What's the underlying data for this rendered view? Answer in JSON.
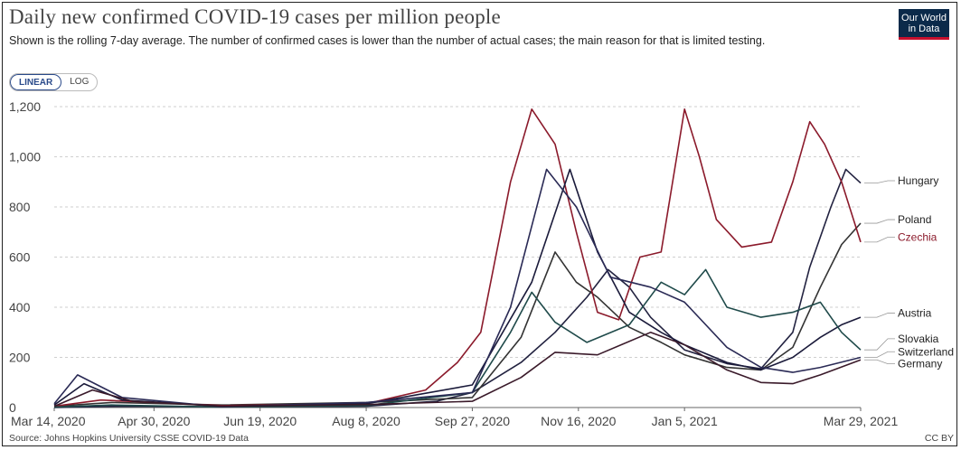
{
  "header": {
    "title": "Daily new confirmed COVID-19 cases per million people",
    "subtitle": "Shown is the rolling 7-day average. The number of confirmed cases is lower than the number of actual cases; the main reason for that is limited testing.",
    "logo_line1": "Our World",
    "logo_line2": "in Data"
  },
  "controls": {
    "linear_label": "LINEAR",
    "log_label": "LOG",
    "selected": "LINEAR"
  },
  "footer": {
    "source": "Source: Johns Hopkins University CSSE COVID-19 Data",
    "license": "CC BY"
  },
  "chart_data": {
    "type": "line",
    "title": "Daily new confirmed COVID-19 cases per million people",
    "ylim": [
      0,
      1200
    ],
    "yticks": [
      0,
      200,
      400,
      600,
      800,
      1000,
      1200
    ],
    "ytick_labels": [
      "0",
      "200",
      "400",
      "600",
      "800",
      "1,000",
      "1,200"
    ],
    "xlim": [
      "2020-03-14",
      "2021-03-29"
    ],
    "xticks": [
      "2020-03-14",
      "2020-04-30",
      "2020-06-19",
      "2020-08-08",
      "2020-09-27",
      "2020-11-16",
      "2021-01-05",
      "2021-03-29"
    ],
    "xtick_labels": [
      "Mar 14, 2020",
      "Apr 30, 2020",
      "Jun 19, 2020",
      "Aug 8, 2020",
      "Sep 27, 2020",
      "Nov 16, 2020",
      "Jan 5, 2021",
      "Mar 29, 2021"
    ],
    "grid": true,
    "legend": "right-end-labels",
    "series": [
      {
        "name": "Hungary",
        "color": "#222240",
        "points": [
          [
            "2020-03-14",
            0
          ],
          [
            "2020-04-15",
            5
          ],
          [
            "2020-06-01",
            3
          ],
          [
            "2020-08-08",
            5
          ],
          [
            "2020-09-10",
            25
          ],
          [
            "2020-09-27",
            60
          ],
          [
            "2020-10-20",
            180
          ],
          [
            "2020-11-05",
            300
          ],
          [
            "2020-11-20",
            440
          ],
          [
            "2020-11-30",
            550
          ],
          [
            "2020-12-10",
            480
          ],
          [
            "2020-12-20",
            360
          ],
          [
            "2021-01-05",
            230
          ],
          [
            "2021-01-25",
            175
          ],
          [
            "2021-02-10",
            155
          ],
          [
            "2021-02-25",
            300
          ],
          [
            "2021-03-05",
            560
          ],
          [
            "2021-03-15",
            800
          ],
          [
            "2021-03-22",
            950
          ],
          [
            "2021-03-29",
            895
          ]
        ]
      },
      {
        "name": "Poland",
        "color": "#333333",
        "points": [
          [
            "2020-03-14",
            5
          ],
          [
            "2020-04-10",
            20
          ],
          [
            "2020-06-01",
            10
          ],
          [
            "2020-08-08",
            20
          ],
          [
            "2020-09-27",
            40
          ],
          [
            "2020-10-20",
            280
          ],
          [
            "2020-11-05",
            620
          ],
          [
            "2020-11-15",
            500
          ],
          [
            "2020-11-25",
            440
          ],
          [
            "2020-12-10",
            320
          ],
          [
            "2020-12-25",
            260
          ],
          [
            "2021-01-05",
            210
          ],
          [
            "2021-01-25",
            160
          ],
          [
            "2021-02-10",
            150
          ],
          [
            "2021-02-25",
            240
          ],
          [
            "2021-03-10",
            480
          ],
          [
            "2021-03-20",
            650
          ],
          [
            "2021-03-29",
            735
          ]
        ]
      },
      {
        "name": "Czechia",
        "color": "#8b1a2b",
        "points": [
          [
            "2020-03-14",
            5
          ],
          [
            "2020-04-05",
            30
          ],
          [
            "2020-06-01",
            8
          ],
          [
            "2020-08-08",
            15
          ],
          [
            "2020-09-05",
            70
          ],
          [
            "2020-09-20",
            180
          ],
          [
            "2020-10-01",
            300
          ],
          [
            "2020-10-15",
            900
          ],
          [
            "2020-10-25",
            1190
          ],
          [
            "2020-11-05",
            1050
          ],
          [
            "2020-11-15",
            700
          ],
          [
            "2020-11-25",
            380
          ],
          [
            "2020-12-05",
            350
          ],
          [
            "2020-12-15",
            600
          ],
          [
            "2020-12-25",
            620
          ],
          [
            "2021-01-05",
            1190
          ],
          [
            "2021-01-12",
            1000
          ],
          [
            "2021-01-20",
            750
          ],
          [
            "2021-02-01",
            640
          ],
          [
            "2021-02-15",
            660
          ],
          [
            "2021-02-25",
            900
          ],
          [
            "2021-03-05",
            1140
          ],
          [
            "2021-03-12",
            1050
          ],
          [
            "2021-03-20",
            900
          ],
          [
            "2021-03-29",
            660
          ]
        ]
      },
      {
        "name": "Austria",
        "color": "#1a1a3a",
        "points": [
          [
            "2020-03-14",
            10
          ],
          [
            "2020-03-28",
            95
          ],
          [
            "2020-04-15",
            30
          ],
          [
            "2020-06-01",
            5
          ],
          [
            "2020-08-08",
            15
          ],
          [
            "2020-09-27",
            90
          ],
          [
            "2020-10-25",
            500
          ],
          [
            "2020-11-12",
            950
          ],
          [
            "2020-11-25",
            620
          ],
          [
            "2020-12-10",
            380
          ],
          [
            "2020-12-25",
            300
          ],
          [
            "2021-01-05",
            250
          ],
          [
            "2021-01-25",
            180
          ],
          [
            "2021-02-10",
            150
          ],
          [
            "2021-02-25",
            200
          ],
          [
            "2021-03-10",
            280
          ],
          [
            "2021-03-20",
            330
          ],
          [
            "2021-03-29",
            360
          ]
        ]
      },
      {
        "name": "Slovakia",
        "color": "#1f4a4a",
        "points": [
          [
            "2020-03-14",
            2
          ],
          [
            "2020-04-10",
            10
          ],
          [
            "2020-06-01",
            2
          ],
          [
            "2020-08-08",
            8
          ],
          [
            "2020-09-27",
            60
          ],
          [
            "2020-10-15",
            300
          ],
          [
            "2020-10-25",
            460
          ],
          [
            "2020-11-05",
            340
          ],
          [
            "2020-11-20",
            260
          ],
          [
            "2020-12-10",
            330
          ],
          [
            "2020-12-25",
            500
          ],
          [
            "2021-01-05",
            450
          ],
          [
            "2021-01-15",
            550
          ],
          [
            "2021-01-25",
            400
          ],
          [
            "2021-02-10",
            360
          ],
          [
            "2021-02-25",
            380
          ],
          [
            "2021-03-10",
            420
          ],
          [
            "2021-03-20",
            300
          ],
          [
            "2021-03-29",
            230
          ]
        ]
      },
      {
        "name": "Switzerland",
        "color": "#2a2a55",
        "points": [
          [
            "2020-03-14",
            15
          ],
          [
            "2020-03-25",
            130
          ],
          [
            "2020-04-15",
            40
          ],
          [
            "2020-06-01",
            3
          ],
          [
            "2020-08-08",
            20
          ],
          [
            "2020-09-27",
            60
          ],
          [
            "2020-10-15",
            400
          ],
          [
            "2020-11-01",
            950
          ],
          [
            "2020-11-15",
            800
          ],
          [
            "2020-12-01",
            520
          ],
          [
            "2020-12-20",
            480
          ],
          [
            "2021-01-05",
            420
          ],
          [
            "2021-01-25",
            240
          ],
          [
            "2021-02-10",
            160
          ],
          [
            "2021-02-25",
            140
          ],
          [
            "2021-03-10",
            160
          ],
          [
            "2021-03-29",
            200
          ]
        ]
      },
      {
        "name": "Germany",
        "color": "#3a1a2a",
        "points": [
          [
            "2020-03-14",
            5
          ],
          [
            "2020-04-01",
            70
          ],
          [
            "2020-04-20",
            25
          ],
          [
            "2020-06-01",
            5
          ],
          [
            "2020-08-08",
            12
          ],
          [
            "2020-09-27",
            25
          ],
          [
            "2020-10-20",
            120
          ],
          [
            "2020-11-05",
            220
          ],
          [
            "2020-11-25",
            210
          ],
          [
            "2020-12-20",
            300
          ],
          [
            "2021-01-05",
            250
          ],
          [
            "2021-01-25",
            150
          ],
          [
            "2021-02-10",
            100
          ],
          [
            "2021-02-25",
            95
          ],
          [
            "2021-03-10",
            130
          ],
          [
            "2021-03-29",
            190
          ]
        ]
      }
    ],
    "legend_labels": [
      {
        "name": "Hungary",
        "color": "#222222",
        "y": 890
      },
      {
        "name": "Poland",
        "color": "#222222",
        "y": 735
      },
      {
        "name": "Czechia",
        "color": "#8b1a2b",
        "y": 665
      },
      {
        "name": "Austria",
        "color": "#222222",
        "y": 362
      },
      {
        "name": "Slovakia",
        "color": "#222222",
        "y": 260
      },
      {
        "name": "Switzerland",
        "color": "#222222",
        "y": 208
      },
      {
        "name": "Germany",
        "color": "#222222",
        "y": 160
      }
    ]
  }
}
